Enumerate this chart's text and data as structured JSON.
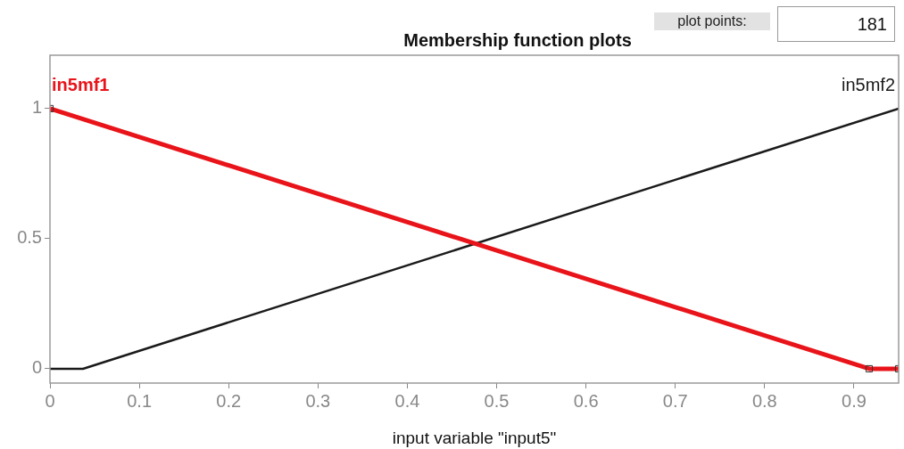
{
  "chart_data": {
    "type": "line",
    "title": "Membership function plots",
    "xlabel": "input variable \"input5\"",
    "annotations": [
      "plot points:",
      "181"
    ],
    "xlim": [
      0,
      0.95
    ],
    "xticks": [
      0,
      0.1,
      0.2,
      0.3,
      0.4,
      0.5,
      0.6,
      0.7,
      0.8,
      0.9
    ],
    "ylim": [
      -0.055,
      1.205
    ],
    "yticks": [
      0,
      0.5,
      1
    ],
    "grid": false,
    "legend": false,
    "series": [
      {
        "name": "in5mf1",
        "color": "#e8141a",
        "x": [
          0,
          0.917,
          0.95
        ],
        "values": [
          1,
          0,
          0
        ],
        "marker": "square"
      },
      {
        "name": "in5mf2",
        "color": "#1a1a1a",
        "x": [
          0,
          0.037,
          0.95
        ],
        "values": [
          0,
          0,
          1
        ],
        "marker": "none"
      }
    ]
  }
}
